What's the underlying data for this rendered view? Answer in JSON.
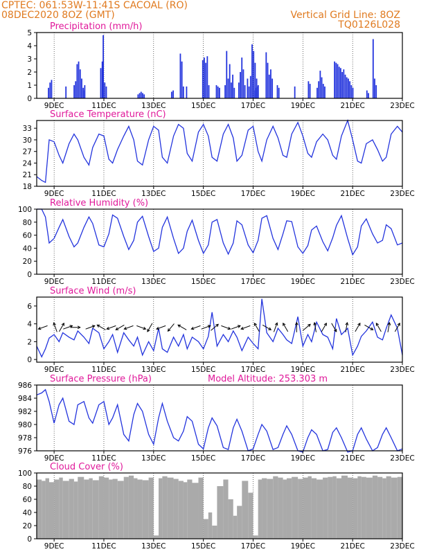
{
  "header": {
    "line1_left": "CPTEC:   061:53W-11:41S   CACOAL (RO)",
    "line2_left": "08DEC2020 8OZ (GMT)",
    "line1_right": "Vertical Grid Line: 8OZ",
    "line2_right": "TQ0126L028"
  },
  "colors": {
    "header": "#e07a1f",
    "title": "#e0189a",
    "line": "#2233dd",
    "cloud": "#aaaaaa"
  },
  "x_axis": {
    "tick_labels": [
      "9DEC",
      "11DEC",
      "13DEC",
      "15DEC",
      "17DEC",
      "19DEC",
      "21DEC",
      "23DEC"
    ],
    "tick_days": [
      9,
      11,
      13,
      15,
      17,
      19,
      21,
      23
    ],
    "start_day": 8.3,
    "end_day": 23.0
  },
  "chart_data": [
    {
      "id": "precip",
      "type": "bar",
      "title": "Precipitation (mm/h)",
      "ylim": [
        0,
        5
      ],
      "yticks": [
        0,
        1,
        2,
        3,
        4,
        5
      ],
      "grid": "vertical dotted at 8OZ",
      "events": [
        {
          "x": 8.75,
          "values": [
            0.8,
            1.2,
            1.4
          ]
        },
        {
          "x": 9.45,
          "values": [
            0.9
          ]
        },
        {
          "x": 9.78,
          "values": [
            1.0,
            1.3
          ]
        },
        {
          "x": 9.9,
          "values": [
            2.6,
            2.8,
            2.2,
            1.5,
            0.8,
            1.0
          ]
        },
        {
          "x": 10.15,
          "values": [
            0.6
          ]
        },
        {
          "x": 10.85,
          "values": [
            2.3,
            2.8
          ]
        },
        {
          "x": 10.95,
          "values": [
            4.8,
            1.2,
            0.9
          ]
        },
        {
          "x": 12.35,
          "values": [
            0.3,
            0.4,
            0.5,
            0.4,
            0.3
          ]
        },
        {
          "x": 13.7,
          "values": [
            0.5,
            0.6
          ]
        },
        {
          "x": 14.05,
          "values": [
            3.4,
            2.8,
            0.9
          ]
        },
        {
          "x": 14.3,
          "values": [
            0.9
          ]
        },
        {
          "x": 14.95,
          "values": [
            2.9,
            3.1,
            2.7,
            3.2,
            1.0
          ]
        },
        {
          "x": 15.5,
          "values": [
            1.0,
            0.9,
            0.8
          ]
        },
        {
          "x": 15.85,
          "values": [
            1.0,
            3.6,
            1.5,
            2.6,
            1.2,
            1.8,
            0.8
          ]
        },
        {
          "x": 16.4,
          "values": [
            1.2,
            2.0,
            3.1,
            2.2,
            1.0
          ]
        },
        {
          "x": 16.75,
          "values": [
            1.5,
            0.9,
            1.7,
            4.1,
            3.6,
            2.7,
            1.5,
            1.0
          ]
        },
        {
          "x": 17.05,
          "values": [
            0.6,
            0.8,
            0.9
          ]
        },
        {
          "x": 17.5,
          "values": [
            3.5,
            2.7,
            1.8,
            2.2,
            1.5
          ]
        },
        {
          "x": 17.95,
          "values": [
            1.0,
            0.8
          ]
        },
        {
          "x": 18.65,
          "values": [
            0.9
          ]
        },
        {
          "x": 19.2,
          "values": [
            1.3,
            1.1
          ]
        },
        {
          "x": 19.55,
          "values": [
            0.8,
            1.3,
            2.1,
            1.6,
            1.1,
            0.9
          ]
        },
        {
          "x": 20.25,
          "values": [
            2.8,
            2.7,
            2.6,
            2.4,
            2.3,
            2.0,
            2.2,
            1.8,
            1.6,
            1.5,
            1.3,
            1.0,
            0.8
          ]
        },
        {
          "x": 21.55,
          "values": [
            0.6,
            0.4
          ]
        },
        {
          "x": 21.8,
          "values": [
            4.5,
            1.5,
            1.0
          ]
        }
      ]
    },
    {
      "id": "temp",
      "type": "line",
      "title": "Surface Temperature (nC)",
      "ylim": [
        18,
        35
      ],
      "yticks": [
        18,
        21,
        24,
        27,
        30,
        33
      ],
      "x": [
        8.3,
        8.5,
        8.65,
        8.8,
        9.0,
        9.2,
        9.35,
        9.6,
        9.8,
        9.95,
        10.2,
        10.4,
        10.55,
        10.8,
        11.0,
        11.2,
        11.35,
        11.55,
        11.8,
        12.0,
        12.2,
        12.35,
        12.55,
        12.8,
        13.0,
        13.2,
        13.35,
        13.55,
        13.8,
        14.0,
        14.2,
        14.35,
        14.55,
        14.8,
        15.0,
        15.2,
        15.35,
        15.55,
        15.8,
        16.0,
        16.2,
        16.35,
        16.55,
        16.8,
        17.0,
        17.2,
        17.35,
        17.55,
        17.8,
        18.0,
        18.2,
        18.35,
        18.55,
        18.8,
        19.0,
        19.2,
        19.35,
        19.55,
        19.8,
        20.0,
        20.2,
        20.35,
        20.55,
        20.8,
        21.0,
        21.2,
        21.35,
        21.55,
        21.8,
        22.0,
        22.2,
        22.35,
        22.55,
        22.8,
        23.0
      ],
      "values": [
        20.5,
        19.5,
        19,
        30,
        29.5,
        26,
        24,
        29,
        31.5,
        30,
        25.5,
        23.5,
        28,
        31.5,
        31,
        25,
        24,
        27.5,
        31,
        33.5,
        30,
        24.5,
        23.5,
        30,
        33.5,
        32.5,
        25.5,
        24,
        31,
        34,
        33,
        26.5,
        24.5,
        32,
        34,
        31,
        25.5,
        24.5,
        31.5,
        34,
        30.5,
        24.5,
        26,
        32.5,
        33.5,
        27,
        24.5,
        30,
        33.5,
        30.5,
        26,
        25.5,
        31.5,
        34.5,
        31,
        26.5,
        25.5,
        29.5,
        31.5,
        30,
        26,
        25,
        31,
        35,
        30,
        24.5,
        24,
        29,
        30,
        27.5,
        24.5,
        25.5,
        31.5,
        33.5,
        32
      ]
    },
    {
      "id": "rh",
      "type": "line",
      "title": "Relative Humidity (%)",
      "ylim": [
        0,
        100
      ],
      "yticks": [
        0,
        20,
        40,
        60,
        80,
        100
      ],
      "x": [
        8.3,
        8.5,
        8.65,
        8.8,
        9.0,
        9.2,
        9.35,
        9.6,
        9.8,
        9.95,
        10.2,
        10.4,
        10.55,
        10.8,
        11.0,
        11.2,
        11.35,
        11.55,
        11.8,
        12.0,
        12.2,
        12.35,
        12.55,
        12.8,
        13.0,
        13.2,
        13.35,
        13.55,
        13.8,
        14.0,
        14.2,
        14.35,
        14.55,
        14.8,
        15.0,
        15.2,
        15.35,
        15.55,
        15.8,
        16.0,
        16.2,
        16.35,
        16.55,
        16.8,
        17.0,
        17.2,
        17.35,
        17.55,
        17.8,
        18.0,
        18.2,
        18.35,
        18.55,
        18.8,
        19.0,
        19.2,
        19.35,
        19.55,
        19.8,
        20.0,
        20.2,
        20.35,
        20.55,
        20.8,
        21.0,
        21.2,
        21.35,
        21.55,
        21.8,
        22.0,
        22.2,
        22.35,
        22.55,
        22.8,
        23.0
      ],
      "values": [
        100,
        100,
        88,
        48,
        55,
        72,
        84,
        58,
        42,
        48,
        72,
        88,
        78,
        45,
        42,
        62,
        91,
        86,
        58,
        38,
        52,
        80,
        89,
        58,
        35,
        40,
        72,
        88,
        55,
        32,
        40,
        66,
        83,
        52,
        32,
        45,
        80,
        84,
        48,
        31,
        48,
        82,
        76,
        45,
        33,
        52,
        86,
        90,
        55,
        38,
        62,
        82,
        81,
        42,
        32,
        44,
        68,
        74,
        50,
        36,
        56,
        75,
        90,
        55,
        30,
        42,
        74,
        85,
        62,
        48,
        52,
        76,
        70,
        45,
        48
      ]
    },
    {
      "id": "wind",
      "type": "line",
      "title": "Surface Wind (m/s)",
      "ylim": [
        -0.3,
        7
      ],
      "yticks": [
        0,
        2,
        4,
        6
      ],
      "x": [
        8.3,
        8.5,
        8.65,
        8.8,
        9.0,
        9.2,
        9.35,
        9.6,
        9.8,
        9.95,
        10.2,
        10.4,
        10.55,
        10.8,
        11.0,
        11.2,
        11.35,
        11.55,
        11.8,
        12.0,
        12.2,
        12.35,
        12.55,
        12.8,
        13.0,
        13.2,
        13.35,
        13.55,
        13.8,
        14.0,
        14.2,
        14.35,
        14.55,
        14.8,
        15.0,
        15.2,
        15.35,
        15.55,
        15.8,
        16.0,
        16.2,
        16.35,
        16.55,
        16.8,
        17.0,
        17.2,
        17.35,
        17.55,
        17.8,
        18.0,
        18.2,
        18.35,
        18.55,
        18.8,
        19.0,
        19.2,
        19.35,
        19.55,
        19.8,
        20.0,
        20.2,
        20.35,
        20.55,
        20.8,
        21.0,
        21.2,
        21.35,
        21.55,
        21.8,
        22.0,
        22.2,
        22.35,
        22.55,
        22.8,
        23.0
      ],
      "values": [
        1.5,
        0.3,
        1.2,
        2.4,
        2.8,
        2.0,
        3.0,
        2.5,
        2.2,
        3.2,
        2.5,
        1.8,
        3.5,
        3.0,
        1.2,
        2.0,
        2.8,
        0.8,
        3.0,
        2.2,
        1.5,
        2.5,
        0.5,
        2.0,
        1.0,
        3.5,
        1.2,
        0.8,
        2.5,
        1.5,
        2.8,
        1.2,
        2.5,
        2.0,
        1.2,
        2.6,
        5.3,
        1.5,
        2.8,
        2.0,
        3.2,
        2.5,
        1.0,
        2.5,
        1.8,
        1.2,
        6.8,
        3.0,
        2.0,
        3.5,
        2.8,
        2.2,
        1.8,
        4.8,
        1.5,
        2.8,
        2.0,
        4.2,
        2.8,
        2.5,
        1.2,
        4.6,
        2.8,
        3.5,
        0.5,
        1.5,
        2.6,
        3.2,
        4.2,
        2.5,
        2.2,
        3.5,
        5.0,
        3.5,
        0.5
      ],
      "vectors": [
        {
          "x": 8.55,
          "angle": 200
        },
        {
          "x": 9.05,
          "angle": 110
        },
        {
          "x": 9.3,
          "angle": 60
        },
        {
          "x": 9.55,
          "angle": 20
        },
        {
          "x": 9.85,
          "angle": 0
        },
        {
          "x": 10.45,
          "angle": 20
        },
        {
          "x": 10.9,
          "angle": 150
        },
        {
          "x": 11.3,
          "angle": 200
        },
        {
          "x": 11.65,
          "angle": 210
        },
        {
          "x": 12.0,
          "angle": 200
        },
        {
          "x": 12.5,
          "angle": 340
        },
        {
          "x": 12.85,
          "angle": 240
        },
        {
          "x": 13.3,
          "angle": 200
        },
        {
          "x": 13.7,
          "angle": 230
        },
        {
          "x": 14.15,
          "angle": 150
        },
        {
          "x": 14.7,
          "angle": 200
        },
        {
          "x": 15.1,
          "angle": 20
        },
        {
          "x": 15.45,
          "angle": 40
        },
        {
          "x": 15.9,
          "angle": 340
        },
        {
          "x": 16.3,
          "angle": 20
        },
        {
          "x": 16.7,
          "angle": 200
        },
        {
          "x": 17.15,
          "angle": 120
        },
        {
          "x": 17.55,
          "angle": 330
        },
        {
          "x": 17.9,
          "angle": 70
        },
        {
          "x": 18.3,
          "angle": 120
        },
        {
          "x": 18.75,
          "angle": 90
        },
        {
          "x": 19.15,
          "angle": 40
        },
        {
          "x": 19.5,
          "angle": 100
        },
        {
          "x": 19.85,
          "angle": 60
        },
        {
          "x": 20.25,
          "angle": 300
        },
        {
          "x": 20.75,
          "angle": 80
        },
        {
          "x": 21.2,
          "angle": 60
        },
        {
          "x": 21.65,
          "angle": 330
        },
        {
          "x": 22.05,
          "angle": 120
        },
        {
          "x": 22.45,
          "angle": 80
        },
        {
          "x": 22.8,
          "angle": 60
        }
      ]
    },
    {
      "id": "pres",
      "type": "line",
      "title": "Surface Pressure (hPa)",
      "subtitle": "Model Altitude: 253.303 m",
      "ylim": [
        976,
        986
      ],
      "yticks": [
        976,
        978,
        980,
        982,
        984,
        986
      ],
      "x": [
        8.3,
        8.5,
        8.65,
        8.8,
        9.0,
        9.2,
        9.35,
        9.6,
        9.8,
        9.95,
        10.2,
        10.4,
        10.55,
        10.8,
        11.0,
        11.2,
        11.35,
        11.55,
        11.8,
        12.0,
        12.2,
        12.35,
        12.55,
        12.8,
        13.0,
        13.2,
        13.35,
        13.55,
        13.8,
        14.0,
        14.2,
        14.35,
        14.55,
        14.8,
        15.0,
        15.2,
        15.35,
        15.55,
        15.8,
        16.0,
        16.2,
        16.35,
        16.55,
        16.8,
        17.0,
        17.2,
        17.35,
        17.55,
        17.8,
        18.0,
        18.2,
        18.35,
        18.55,
        18.8,
        19.0,
        19.2,
        19.35,
        19.55,
        19.8,
        20.0,
        20.2,
        20.35,
        20.55,
        20.8,
        21.0,
        21.2,
        21.35,
        21.55,
        21.8,
        22.0,
        22.2,
        22.35,
        22.55,
        22.8,
        23.0
      ],
      "values": [
        984.5,
        984.8,
        985.3,
        983.5,
        980.2,
        983.0,
        984.0,
        980.5,
        980.0,
        983.0,
        983.5,
        981.0,
        980.2,
        983.0,
        983.5,
        980.0,
        981.0,
        983.0,
        978.5,
        977.5,
        981.5,
        983.2,
        982.0,
        978.5,
        977.0,
        981.0,
        983.2,
        980.5,
        978.0,
        977.5,
        979.0,
        981.2,
        980.5,
        977.0,
        976.3,
        979.5,
        981.0,
        979.8,
        976.5,
        976.2,
        979.5,
        980.8,
        979.0,
        976.0,
        976.3,
        978.5,
        980.0,
        979.0,
        976.2,
        976.5,
        978.5,
        979.8,
        978.5,
        976.0,
        975.8,
        978.0,
        979.2,
        978.5,
        976.0,
        976.2,
        978.8,
        979.5,
        978.0,
        975.8,
        976.0,
        978.5,
        979.5,
        977.8,
        976.0,
        976.5,
        978.5,
        979.5,
        978.0,
        976.0,
        976.3
      ]
    },
    {
      "id": "cloud",
      "type": "bar",
      "title": "Cloud Cover (%)",
      "ylim": [
        0,
        100
      ],
      "yticks": [
        0,
        20,
        40,
        60,
        80,
        100
      ],
      "x": [
        8.3,
        8.5,
        8.65,
        8.8,
        9.0,
        9.2,
        9.35,
        9.6,
        9.8,
        9.95,
        10.2,
        10.4,
        10.55,
        10.8,
        11.0,
        11.2,
        11.35,
        11.55,
        11.8,
        12.0,
        12.2,
        12.35,
        12.55,
        12.8,
        13.0,
        13.2,
        13.35,
        13.55,
        13.8,
        14.0,
        14.2,
        14.35,
        14.55,
        14.8,
        15.0,
        15.2,
        15.35,
        15.55,
        15.8,
        16.0,
        16.2,
        16.35,
        16.55,
        16.8,
        17.0,
        17.2,
        17.35,
        17.55,
        17.8,
        18.0,
        18.2,
        18.35,
        18.55,
        18.8,
        19.0,
        19.2,
        19.35,
        19.55,
        19.8,
        20.0,
        20.2,
        20.35,
        20.55,
        20.8,
        21.0,
        21.2,
        21.35,
        21.55,
        21.8,
        22.0,
        22.2,
        22.35,
        22.55,
        22.8,
        23.0
      ],
      "values": [
        90,
        88,
        92,
        86,
        90,
        93,
        88,
        91,
        87,
        94,
        90,
        92,
        89,
        95,
        93,
        90,
        91,
        88,
        94,
        96,
        92,
        90,
        89,
        93,
        5,
        92,
        95,
        93,
        91,
        88,
        86,
        90,
        85,
        93,
        30,
        40,
        20,
        80,
        90,
        60,
        35,
        50,
        88,
        70,
        5,
        90,
        92,
        91,
        95,
        93,
        90,
        92,
        94,
        91,
        93,
        95,
        92,
        90,
        93,
        94,
        95,
        92,
        96,
        93,
        92,
        95,
        94,
        93,
        96,
        94,
        92,
        95,
        93,
        94,
        95
      ]
    }
  ]
}
